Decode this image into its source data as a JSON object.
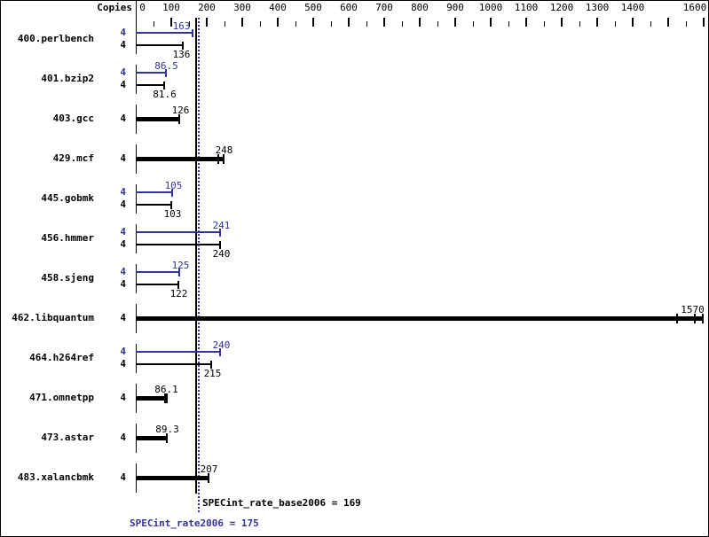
{
  "header": {
    "copies_label": "Copies"
  },
  "summary": {
    "base_text": "SPECint_rate_base2006 = 169",
    "peak_text": "SPECint_rate2006 = 175"
  },
  "colors": {
    "peak_blue": "#333399",
    "base_black": "#000000",
    "background": "#ffffff"
  },
  "chart_data": {
    "type": "bar",
    "orientation": "horizontal",
    "title": "",
    "xlabel": "",
    "ylabel": "Copies",
    "xlim": [
      0,
      1650
    ],
    "grid": false,
    "x_axis_tick_labels": [
      "0",
      "100",
      "200",
      "300",
      "400",
      "500",
      "600",
      "700",
      "800",
      "900",
      "1000",
      "1100",
      "1200",
      "1300",
      "1400",
      "1600"
    ],
    "minor_tick_step": 50,
    "legend": "none",
    "series_note": "peak bars are blue (thin, top), base bars are black; single thick black bar when only one result shown",
    "rows": [
      {
        "name": "400.perlbench",
        "copies": "4",
        "peak": "163",
        "base": "136"
      },
      {
        "name": "401.bzip2",
        "copies": "4",
        "peak": "86.5",
        "base": "81.6"
      },
      {
        "name": "403.gcc",
        "copies": "4",
        "base": "126",
        "spread": [
          126
        ]
      },
      {
        "name": "429.mcf",
        "copies": "4",
        "base": "248",
        "spread": [
          234,
          249
        ]
      },
      {
        "name": "445.gobmk",
        "copies": "4",
        "peak": "105",
        "base": "103"
      },
      {
        "name": "456.hmmer",
        "copies": "4",
        "peak": "241",
        "base": "240"
      },
      {
        "name": "458.sjeng",
        "copies": "4",
        "peak": "125",
        "base": "122"
      },
      {
        "name": "462.libquantum",
        "copies": "4",
        "base": "1570",
        "spread": [
          1528,
          1578,
          1600
        ]
      },
      {
        "name": "464.h264ref",
        "copies": "4",
        "peak": "240",
        "base": "215"
      },
      {
        "name": "471.omnetpp",
        "copies": "4",
        "base": "86.1",
        "spread": [
          84,
          90
        ]
      },
      {
        "name": "473.astar",
        "copies": "4",
        "base": "89.3",
        "spread": [
          89.3
        ]
      },
      {
        "name": "483.xalancbmk",
        "copies": "4",
        "base": "207",
        "spread": [
          207
        ]
      }
    ],
    "reference_lines": [
      {
        "name": "base",
        "value": 169,
        "color": "#000000",
        "style": "solid"
      },
      {
        "name": "peak",
        "value": 175,
        "color": "#333399",
        "style": "dotted"
      }
    ]
  }
}
